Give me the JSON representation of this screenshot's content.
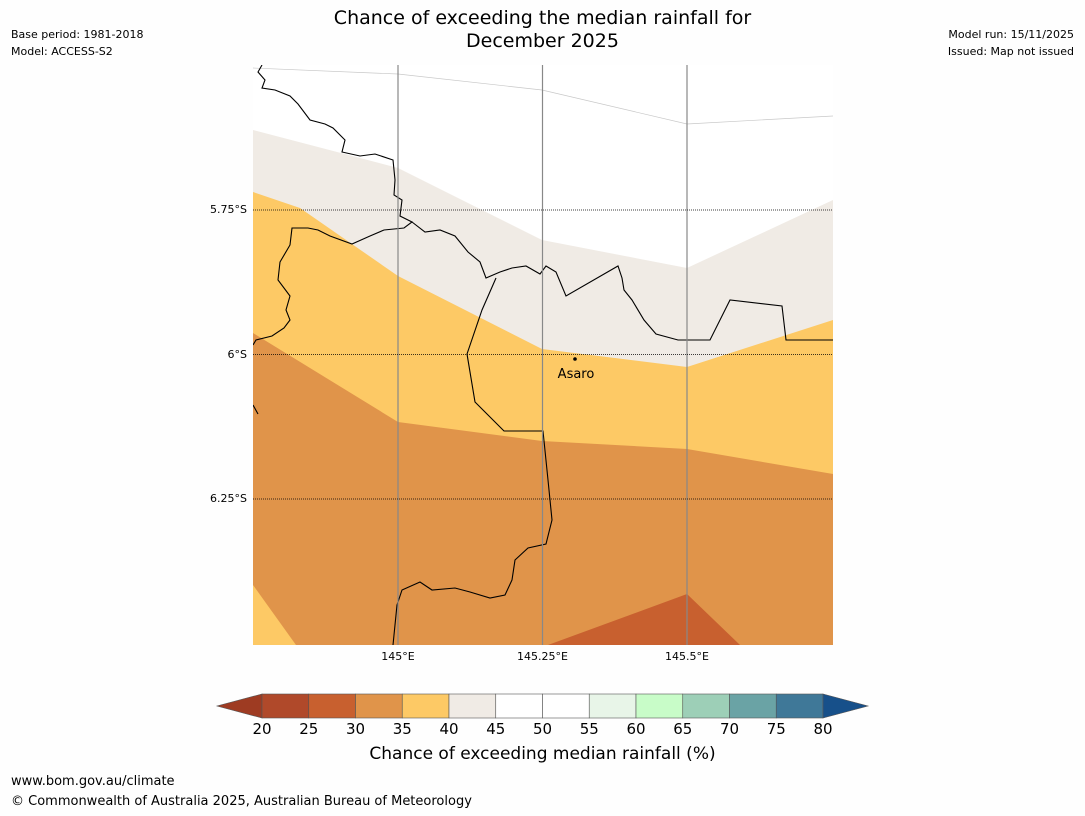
{
  "title_line1": "Chance of exceeding the median rainfall for",
  "title_line2": "December 2025",
  "meta_left": {
    "base_period": "Base period: 1981-2018",
    "model": "Model: ACCESS-S2"
  },
  "meta_right": {
    "model_run": "Model run: 15/11/2025",
    "issued": "Issued: Map not issued"
  },
  "map": {
    "lat_labels": [
      "5.75°S",
      "6°S",
      "6.25°S"
    ],
    "lon_labels": [
      "145°E",
      "145.25°E",
      "145.5°E"
    ],
    "place": {
      "name": "Asaro"
    }
  },
  "colorbar": {
    "ticks": [
      "20",
      "25",
      "30",
      "35",
      "40",
      "45",
      "50",
      "55",
      "60",
      "65",
      "70",
      "75",
      "80"
    ],
    "colors": [
      "#b0492a",
      "#c8602f",
      "#e0944a",
      "#fdc965",
      "#f0ebe5",
      "#ffffff",
      "#ffffff",
      "#e8f5e8",
      "#c8fcc8",
      "#9dcfb7",
      "#6aa3a5",
      "#3f7898"
    ],
    "low_extend_color": "#9e3b22",
    "high_extend_color": "#17508a",
    "label": "Chance of exceeding median rainfall (%)"
  },
  "footer": {
    "url": "www.bom.gov.au/climate",
    "copyright": "© Commonwealth of Australia 2025, Australian Bureau of Meteorology"
  }
}
